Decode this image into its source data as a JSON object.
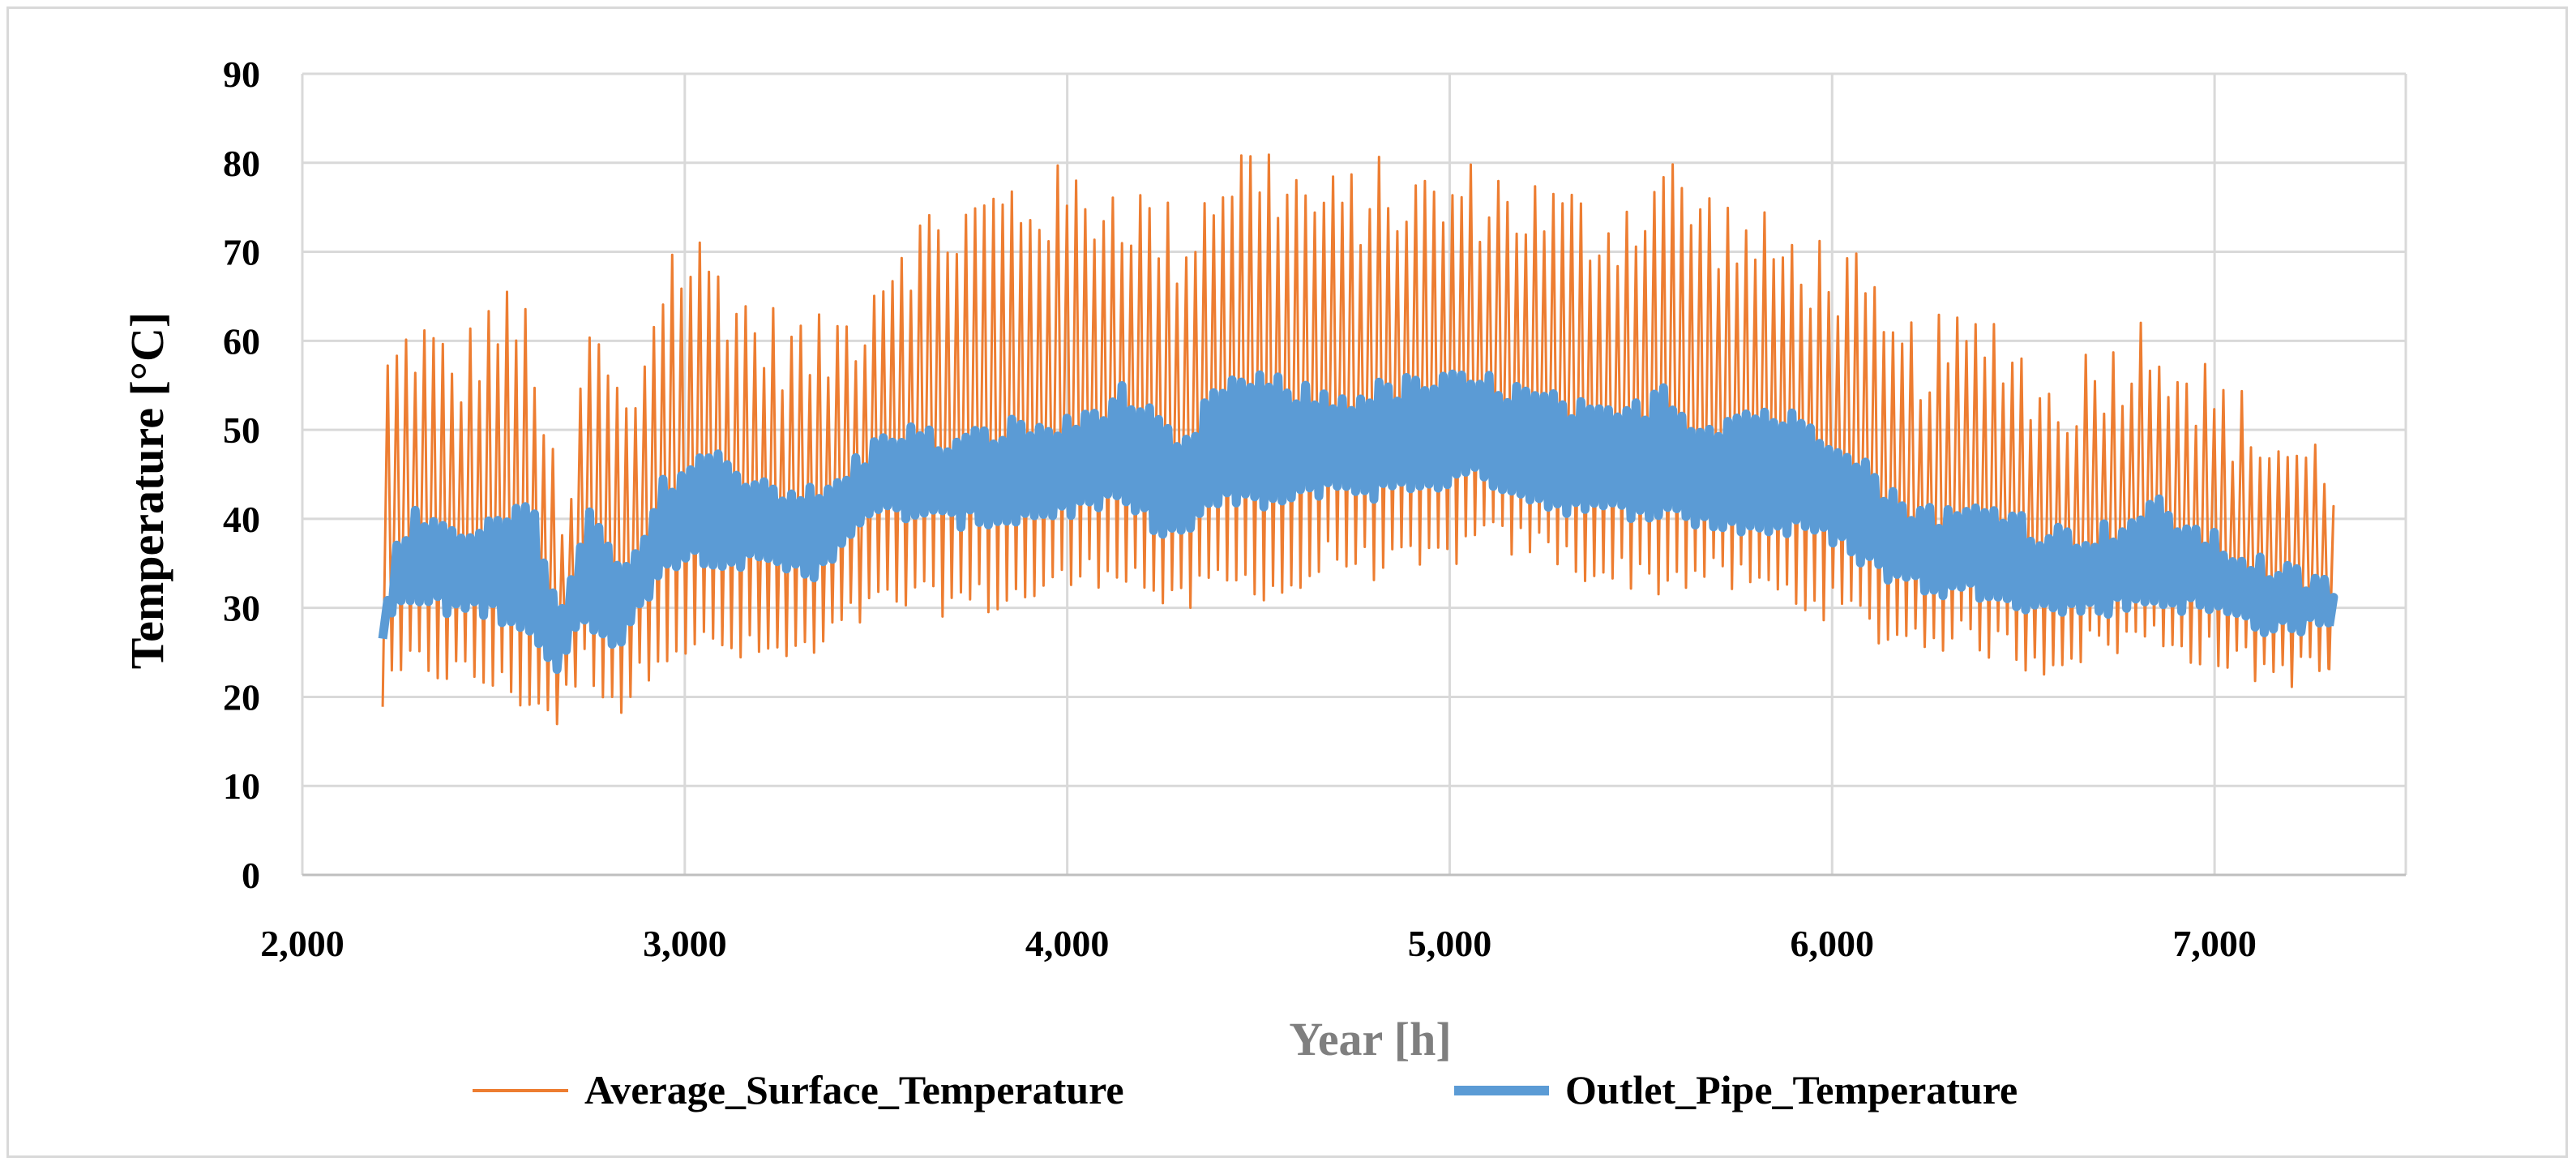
{
  "chart_data": {
    "type": "line",
    "title": "",
    "xlabel": "Year [h]",
    "ylabel": "Temperature [°C]",
    "xlim": [
      2000,
      7500
    ],
    "ylim": [
      0,
      90
    ],
    "x_ticks": [
      2000,
      3000,
      4000,
      5000,
      6000,
      7000
    ],
    "x_tick_labels": [
      "2,000",
      "3,000",
      "4,000",
      "5,000",
      "6,000",
      "7,000"
    ],
    "y_ticks": [
      0,
      10,
      20,
      30,
      40,
      50,
      60,
      70,
      80,
      90
    ],
    "y_tick_labels": [
      "0",
      "10",
      "20",
      "30",
      "40",
      "50",
      "60",
      "70",
      "80",
      "90"
    ],
    "grid": true,
    "legend_position": "bottom",
    "x_range": [
      2210,
      7300
    ],
    "period_hours": 24,
    "series": [
      {
        "name": "Average_Surface_Temperature",
        "color": "#ed7d31",
        "style": "thin",
        "envelope_hours": [
          2210,
          2300,
          2400,
          2500,
          2600,
          2680,
          2750,
          2850,
          2950,
          3050,
          3200,
          3350,
          3450,
          3550,
          3700,
          3850,
          4000,
          4150,
          4300,
          4400,
          4500,
          4600,
          4700,
          4800,
          4950,
          5100,
          5250,
          5400,
          5500,
          5550,
          5650,
          5800,
          5950,
          6050,
          6150,
          6300,
          6450,
          6550,
          6700,
          6850,
          7000,
          7150,
          7300
        ],
        "daily_max": [
          55,
          60,
          55,
          62,
          60,
          35,
          60,
          50,
          68,
          68,
          60,
          58,
          62,
          70,
          72,
          75,
          75,
          75,
          70,
          78,
          79,
          76,
          74,
          76,
          75,
          76,
          74,
          72,
          74,
          78,
          74,
          70,
          68,
          66,
          58,
          58,
          60,
          52,
          56,
          60,
          52,
          48,
          45
        ],
        "daily_min": [
          19,
          24,
          23,
          22,
          20,
          18,
          24,
          19,
          26,
          26,
          25,
          25,
          29,
          31,
          31,
          31,
          33,
          35,
          30,
          33,
          33,
          32,
          36,
          35,
          35,
          38,
          37,
          34,
          34,
          33,
          34,
          33,
          31,
          30,
          27,
          27,
          26,
          24,
          26,
          27,
          25,
          23,
          23
        ]
      },
      {
        "name": "Outlet_Pipe_Temperature",
        "color": "#5b9bd5",
        "style": "thick",
        "envelope_hours": [
          2210,
          2230,
          2300,
          2400,
          2500,
          2600,
          2680,
          2750,
          2850,
          2950,
          3050,
          3200,
          3350,
          3450,
          3550,
          3700,
          3850,
          4000,
          4150,
          4300,
          4400,
          4500,
          4600,
          4700,
          4800,
          4950,
          5100,
          5250,
          5400,
          5500,
          5550,
          5650,
          5800,
          5950,
          6050,
          6150,
          6300,
          6450,
          6550,
          6700,
          6850,
          7000,
          7150,
          7300
        ],
        "daily_max": [
          26,
          35,
          40,
          37,
          41,
          40,
          29,
          40,
          33,
          44,
          47,
          44,
          42,
          46,
          50,
          48,
          50,
          50,
          54,
          47,
          55,
          55,
          54,
          53,
          54,
          55,
          55,
          53,
          51,
          52,
          55,
          50,
          52,
          50,
          48,
          42,
          40,
          41,
          38,
          38,
          41,
          37,
          34,
          32
        ],
        "daily_min": [
          23,
          29,
          31,
          30,
          30,
          28,
          23,
          29,
          26,
          35,
          36,
          35,
          34,
          39,
          41,
          40,
          40,
          41,
          42,
          38,
          42,
          42,
          42,
          44,
          43,
          44,
          45,
          42,
          41,
          41,
          41,
          40,
          39,
          39,
          37,
          34,
          32,
          32,
          30,
          30,
          31,
          30,
          28,
          28
        ]
      }
    ]
  }
}
